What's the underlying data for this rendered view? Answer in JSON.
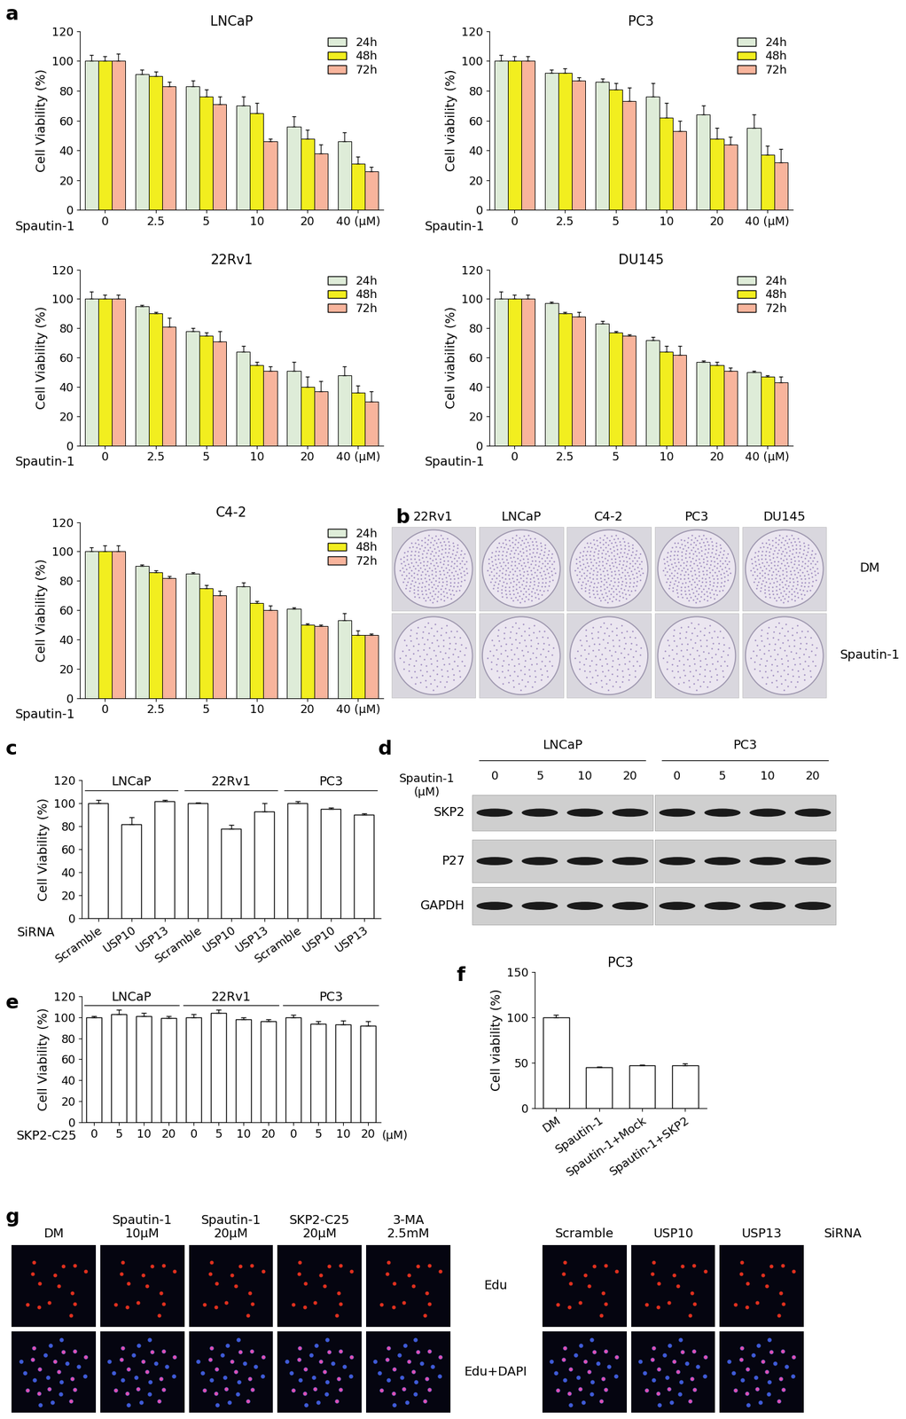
{
  "chart_data": [
    {
      "type": "bar",
      "panel": "a",
      "title": "LNCaP",
      "y_label": "Cell Viability (%)",
      "x_label": "Spautin-1",
      "categories": [
        "0",
        "2.5",
        "5",
        "10",
        "20",
        "40 (μM)"
      ],
      "series": [
        {
          "name": "24h",
          "color": "#deecd8",
          "values": [
            100,
            91,
            83,
            70,
            56,
            46
          ],
          "errors": [
            4,
            3,
            4,
            6,
            7,
            6
          ]
        },
        {
          "name": "48h",
          "color": "#f2ee1f",
          "values": [
            100,
            90,
            76,
            65,
            48,
            31
          ],
          "errors": [
            3,
            3,
            5,
            7,
            6,
            5
          ]
        },
        {
          "name": "72h",
          "color": "#f8b49c",
          "values": [
            100,
            83,
            71,
            46,
            38,
            26
          ],
          "errors": [
            5,
            3,
            5,
            2,
            6,
            3
          ]
        }
      ],
      "ylim": [
        0,
        120
      ],
      "yticks": [
        0,
        20,
        40,
        60,
        80,
        100,
        120
      ],
      "legend": "upper right"
    },
    {
      "type": "bar",
      "title": "PC3",
      "y_label": "Cell viability (%)",
      "x_label": "Spautin-1",
      "categories": [
        "0",
        "2.5",
        "5",
        "10",
        "20",
        "40 (μM)"
      ],
      "series": [
        {
          "name": "24h",
          "color": "#deecd8",
          "values": [
            100,
            92,
            86,
            76,
            64,
            55
          ],
          "errors": [
            4,
            2,
            2,
            9,
            6,
            9
          ]
        },
        {
          "name": "48h",
          "color": "#f2ee1f",
          "values": [
            100,
            92,
            81,
            62,
            48,
            37
          ],
          "errors": [
            3,
            3,
            4,
            10,
            7,
            6
          ]
        },
        {
          "name": "72h",
          "color": "#f8b49c",
          "values": [
            100,
            87,
            73,
            53,
            44,
            32
          ],
          "errors": [
            3,
            2,
            9,
            7,
            5,
            9
          ]
        }
      ],
      "ylim": [
        0,
        120
      ],
      "yticks": [
        0,
        20,
        40,
        60,
        80,
        100,
        120
      ],
      "legend": "upper right"
    },
    {
      "type": "bar",
      "title": "22Rv1",
      "y_label": "Cell Viability (%)",
      "x_label": "Spautin-1",
      "categories": [
        "0",
        "2.5",
        "5",
        "10",
        "20",
        "40 (μM)"
      ],
      "series": [
        {
          "name": "24h",
          "color": "#deecd8",
          "values": [
            100,
            95,
            78,
            64,
            51,
            48
          ],
          "errors": [
            5,
            1,
            2,
            4,
            6,
            6
          ]
        },
        {
          "name": "48h",
          "color": "#f2ee1f",
          "values": [
            100,
            90,
            75,
            55,
            40,
            36
          ],
          "errors": [
            3,
            1,
            2,
            2,
            7,
            5
          ]
        },
        {
          "name": "72h",
          "color": "#f8b49c",
          "values": [
            100,
            81,
            71,
            51,
            37,
            30
          ],
          "errors": [
            3,
            6,
            7,
            3,
            7,
            7
          ]
        }
      ],
      "ylim": [
        0,
        120
      ],
      "yticks": [
        0,
        20,
        40,
        60,
        80,
        100,
        120
      ],
      "legend": "upper right"
    },
    {
      "type": "bar",
      "title": "DU145",
      "y_label": "Cell viability (%)",
      "x_label": "Spautin-1",
      "categories": [
        "0",
        "2.5",
        "5",
        "10",
        "20",
        "40 (μM)"
      ],
      "series": [
        {
          "name": "24h",
          "color": "#deecd8",
          "values": [
            100,
            97,
            83,
            72,
            57,
            50
          ],
          "errors": [
            5,
            1,
            2,
            2,
            1,
            1
          ]
        },
        {
          "name": "48h",
          "color": "#f2ee1f",
          "values": [
            100,
            90,
            77,
            64,
            55,
            47
          ],
          "errors": [
            3,
            1,
            1,
            4,
            2,
            1
          ]
        },
        {
          "name": "72h",
          "color": "#f8b49c",
          "values": [
            100,
            88,
            75,
            62,
            51,
            43
          ],
          "errors": [
            3,
            3,
            1,
            6,
            2,
            4
          ]
        }
      ],
      "ylim": [
        0,
        120
      ],
      "yticks": [
        0,
        20,
        40,
        60,
        80,
        100,
        120
      ],
      "legend": "upper right"
    },
    {
      "type": "bar",
      "title": "C4-2",
      "y_label": "Cell Viability (%)",
      "x_label": "Spautin-1",
      "categories": [
        "0",
        "2.5",
        "5",
        "10",
        "20",
        "40 (μM)"
      ],
      "series": [
        {
          "name": "24h",
          "color": "#deecd8",
          "values": [
            100,
            90,
            85,
            76,
            61,
            53
          ],
          "errors": [
            3,
            1,
            1,
            3,
            1,
            5
          ]
        },
        {
          "name": "48h",
          "color": "#f2ee1f",
          "values": [
            100,
            86,
            75,
            65,
            50,
            43
          ],
          "errors": [
            4,
            1,
            2,
            1,
            1,
            3
          ]
        },
        {
          "name": "72h",
          "color": "#f8b49c",
          "values": [
            100,
            82,
            70,
            60,
            49,
            43
          ],
          "errors": [
            4,
            1,
            3,
            3,
            1,
            1
          ]
        }
      ],
      "ylim": [
        0,
        120
      ],
      "yticks": [
        0,
        20,
        40,
        60,
        80,
        100,
        120
      ],
      "legend": "upper right"
    },
    {
      "type": "bar",
      "panel": "c",
      "y_label": "Cell Viability (%)",
      "x_label": "SiRNA",
      "groups": [
        "LNCaP",
        "22Rv1",
        "PC3"
      ],
      "categories": [
        "Scramble",
        "USP10",
        "USP13",
        "Scramble",
        "USP10",
        "USP13",
        "Scramble",
        "USP10",
        "USP13"
      ],
      "values": [
        100,
        82,
        102,
        100,
        78,
        93,
        100,
        95,
        90
      ],
      "errors": [
        3,
        6,
        1,
        1,
        3,
        7,
        2,
        1,
        1
      ],
      "color": "#ffffff",
      "ylim": [
        0,
        120
      ],
      "yticks": [
        0,
        20,
        40,
        60,
        80,
        100,
        120
      ]
    },
    {
      "type": "bar",
      "panel": "e",
      "y_label": "Cell Viability (%)",
      "x_label": "SKP2-C25",
      "x_unit": "(μM)",
      "groups": [
        "LNCaP",
        "22Rv1",
        "PC3"
      ],
      "categories": [
        "0",
        "5",
        "10",
        "20",
        "0",
        "5",
        "10",
        "20",
        "0",
        "5",
        "10",
        "20"
      ],
      "values": [
        100,
        103,
        101,
        99,
        100,
        104,
        98,
        96,
        100,
        94,
        93,
        92
      ],
      "errors": [
        1,
        4,
        3,
        2,
        3,
        3,
        2,
        2,
        2,
        2,
        4,
        4
      ],
      "color": "#ffffff",
      "ylim": [
        0,
        120
      ],
      "yticks": [
        0,
        20,
        40,
        60,
        80,
        100,
        120
      ]
    },
    {
      "type": "bar",
      "panel": "f",
      "title": "PC3",
      "y_label": "Cell viability (%)",
      "categories": [
        "DM",
        "Spautin-1",
        "Spautin-1+Mock",
        "Spautin-1+SKP2"
      ],
      "values": [
        100,
        45,
        47,
        47
      ],
      "errors": [
        3,
        1,
        1,
        2
      ],
      "color": "#ffffff",
      "ylim": [
        0,
        150
      ],
      "yticks": [
        0,
        50,
        100,
        150
      ]
    }
  ],
  "colony_assay": {
    "panel": "b",
    "columns": [
      "22Rv1",
      "LNCaP",
      "C4-2",
      "PC3",
      "DU145"
    ],
    "rows": [
      "DM",
      "Spautin-1"
    ]
  },
  "western_blot": {
    "panel": "d",
    "treatment": "Spautin-1\n(μM)",
    "groups": [
      "LNCaP",
      "PC3"
    ],
    "doses": [
      "0",
      "5",
      "10",
      "20"
    ],
    "proteins": [
      "SKP2",
      "P27",
      "GAPDH"
    ]
  },
  "edu_assay": {
    "panel": "g",
    "rows": [
      "Edu",
      "Edu+DAPI"
    ],
    "left": {
      "conditions": [
        "DM",
        "Spautin-1\n10μM",
        "Spautin-1\n20μM",
        "SKP2-C25\n20μM",
        "3-MA\n2.5mM"
      ]
    },
    "right": {
      "conditions": [
        "Scramble",
        "USP10",
        "USP13"
      ],
      "label": "SiRNA"
    }
  }
}
